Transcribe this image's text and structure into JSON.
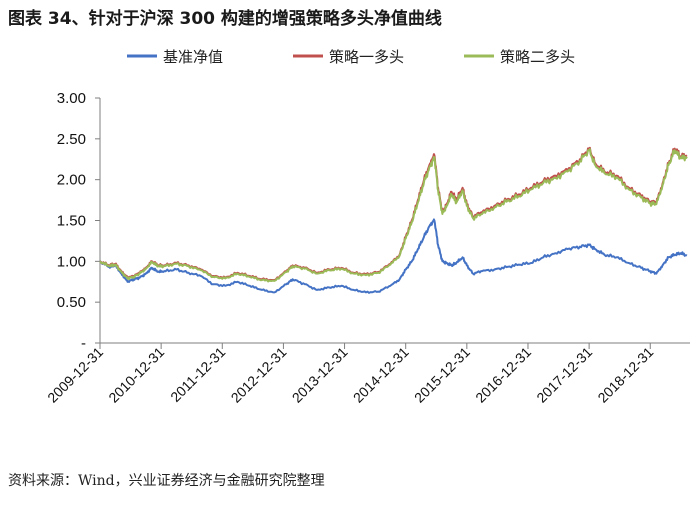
{
  "header": {
    "title": "图表 34、针对于沪深 300 构建的增强策略多头净值曲线"
  },
  "footer": {
    "source": "资料来源：Wind，兴业证券经济与金融研究院整理"
  },
  "colors": {
    "base": "#4472C4",
    "strategy1": "#C0504D",
    "strategy2": "#9BBB59"
  },
  "chart_data": {
    "type": "line",
    "title": "图表 34、针对于沪深 300 构建的增强策略多头净值曲线",
    "xlabel": "",
    "ylabel": "",
    "ylim": [
      0,
      3.0
    ],
    "y_ticks": [
      "3.00",
      "2.50",
      "2.00",
      "1.50",
      "1.00",
      "0.50",
      "-"
    ],
    "x_tick_labels": [
      "2009-12-31",
      "2010-12-31",
      "2011-12-31",
      "2012-12-31",
      "2013-12-31",
      "2014-12-31",
      "2015-12-31",
      "2016-12-31",
      "2017-12-31",
      "2018-12-31"
    ],
    "legend_position": "top",
    "grid": false,
    "x": [
      2009.95,
      2010.1,
      2010.2,
      2010.3,
      2010.4,
      2010.5,
      2010.6,
      2010.7,
      2010.8,
      2010.9,
      2011.0,
      2011.2,
      2011.4,
      2011.6,
      2011.8,
      2012.0,
      2012.2,
      2012.4,
      2012.6,
      2012.8,
      2013.0,
      2013.1,
      2013.3,
      2013.5,
      2013.7,
      2013.9,
      2014.1,
      2014.3,
      2014.5,
      2014.7,
      2014.85,
      2014.95,
      2015.05,
      2015.15,
      2015.25,
      2015.35,
      2015.42,
      2015.48,
      2015.55,
      2015.62,
      2015.7,
      2015.78,
      2015.88,
      2015.95,
      2016.05,
      2016.2,
      2016.4,
      2016.6,
      2016.8,
      2017.0,
      2017.2,
      2017.4,
      2017.6,
      2017.8,
      2017.95,
      2018.05,
      2018.2,
      2018.4,
      2018.6,
      2018.8,
      2018.95,
      2019.05,
      2019.15,
      2019.25,
      2019.35,
      2019.45,
      2019.55
    ],
    "series": [
      {
        "name": "基准净值",
        "values": [
          1.0,
          0.93,
          0.95,
          0.85,
          0.75,
          0.78,
          0.8,
          0.85,
          0.92,
          0.87,
          0.88,
          0.9,
          0.86,
          0.82,
          0.72,
          0.7,
          0.75,
          0.7,
          0.65,
          0.62,
          0.72,
          0.78,
          0.72,
          0.65,
          0.68,
          0.7,
          0.65,
          0.62,
          0.63,
          0.7,
          0.78,
          0.9,
          1.0,
          1.15,
          1.3,
          1.45,
          1.5,
          1.2,
          1.0,
          0.98,
          0.95,
          0.98,
          1.05,
          0.95,
          0.85,
          0.88,
          0.9,
          0.93,
          0.96,
          0.98,
          1.05,
          1.1,
          1.15,
          1.18,
          1.2,
          1.15,
          1.08,
          1.05,
          0.98,
          0.92,
          0.88,
          0.85,
          0.95,
          1.05,
          1.08,
          1.1,
          1.07
        ]
      },
      {
        "name": "策略一多头",
        "values": [
          1.0,
          0.95,
          0.97,
          0.88,
          0.8,
          0.82,
          0.86,
          0.92,
          1.0,
          0.95,
          0.95,
          0.98,
          0.95,
          0.9,
          0.82,
          0.8,
          0.86,
          0.82,
          0.78,
          0.77,
          0.88,
          0.95,
          0.92,
          0.86,
          0.9,
          0.92,
          0.86,
          0.84,
          0.87,
          0.97,
          1.08,
          1.3,
          1.5,
          1.75,
          2.0,
          2.2,
          2.3,
          1.9,
          1.6,
          1.7,
          1.85,
          1.75,
          1.9,
          1.7,
          1.55,
          1.6,
          1.68,
          1.75,
          1.82,
          1.9,
          1.98,
          2.05,
          2.12,
          2.25,
          2.38,
          2.2,
          2.1,
          2.05,
          1.9,
          1.8,
          1.73,
          1.72,
          1.95,
          2.2,
          2.38,
          2.28,
          2.3
        ]
      },
      {
        "name": "策略二多头",
        "values": [
          1.0,
          0.94,
          0.96,
          0.87,
          0.79,
          0.81,
          0.85,
          0.91,
          0.99,
          0.94,
          0.94,
          0.97,
          0.94,
          0.89,
          0.81,
          0.79,
          0.85,
          0.81,
          0.77,
          0.76,
          0.87,
          0.94,
          0.91,
          0.85,
          0.89,
          0.91,
          0.85,
          0.83,
          0.86,
          0.96,
          1.07,
          1.28,
          1.48,
          1.72,
          1.97,
          2.17,
          2.27,
          1.87,
          1.58,
          1.68,
          1.82,
          1.72,
          1.87,
          1.68,
          1.53,
          1.58,
          1.66,
          1.73,
          1.8,
          1.88,
          1.96,
          2.02,
          2.1,
          2.23,
          2.36,
          2.18,
          2.08,
          2.03,
          1.88,
          1.78,
          1.71,
          1.7,
          1.93,
          2.18,
          2.36,
          2.26,
          2.28
        ]
      }
    ]
  }
}
